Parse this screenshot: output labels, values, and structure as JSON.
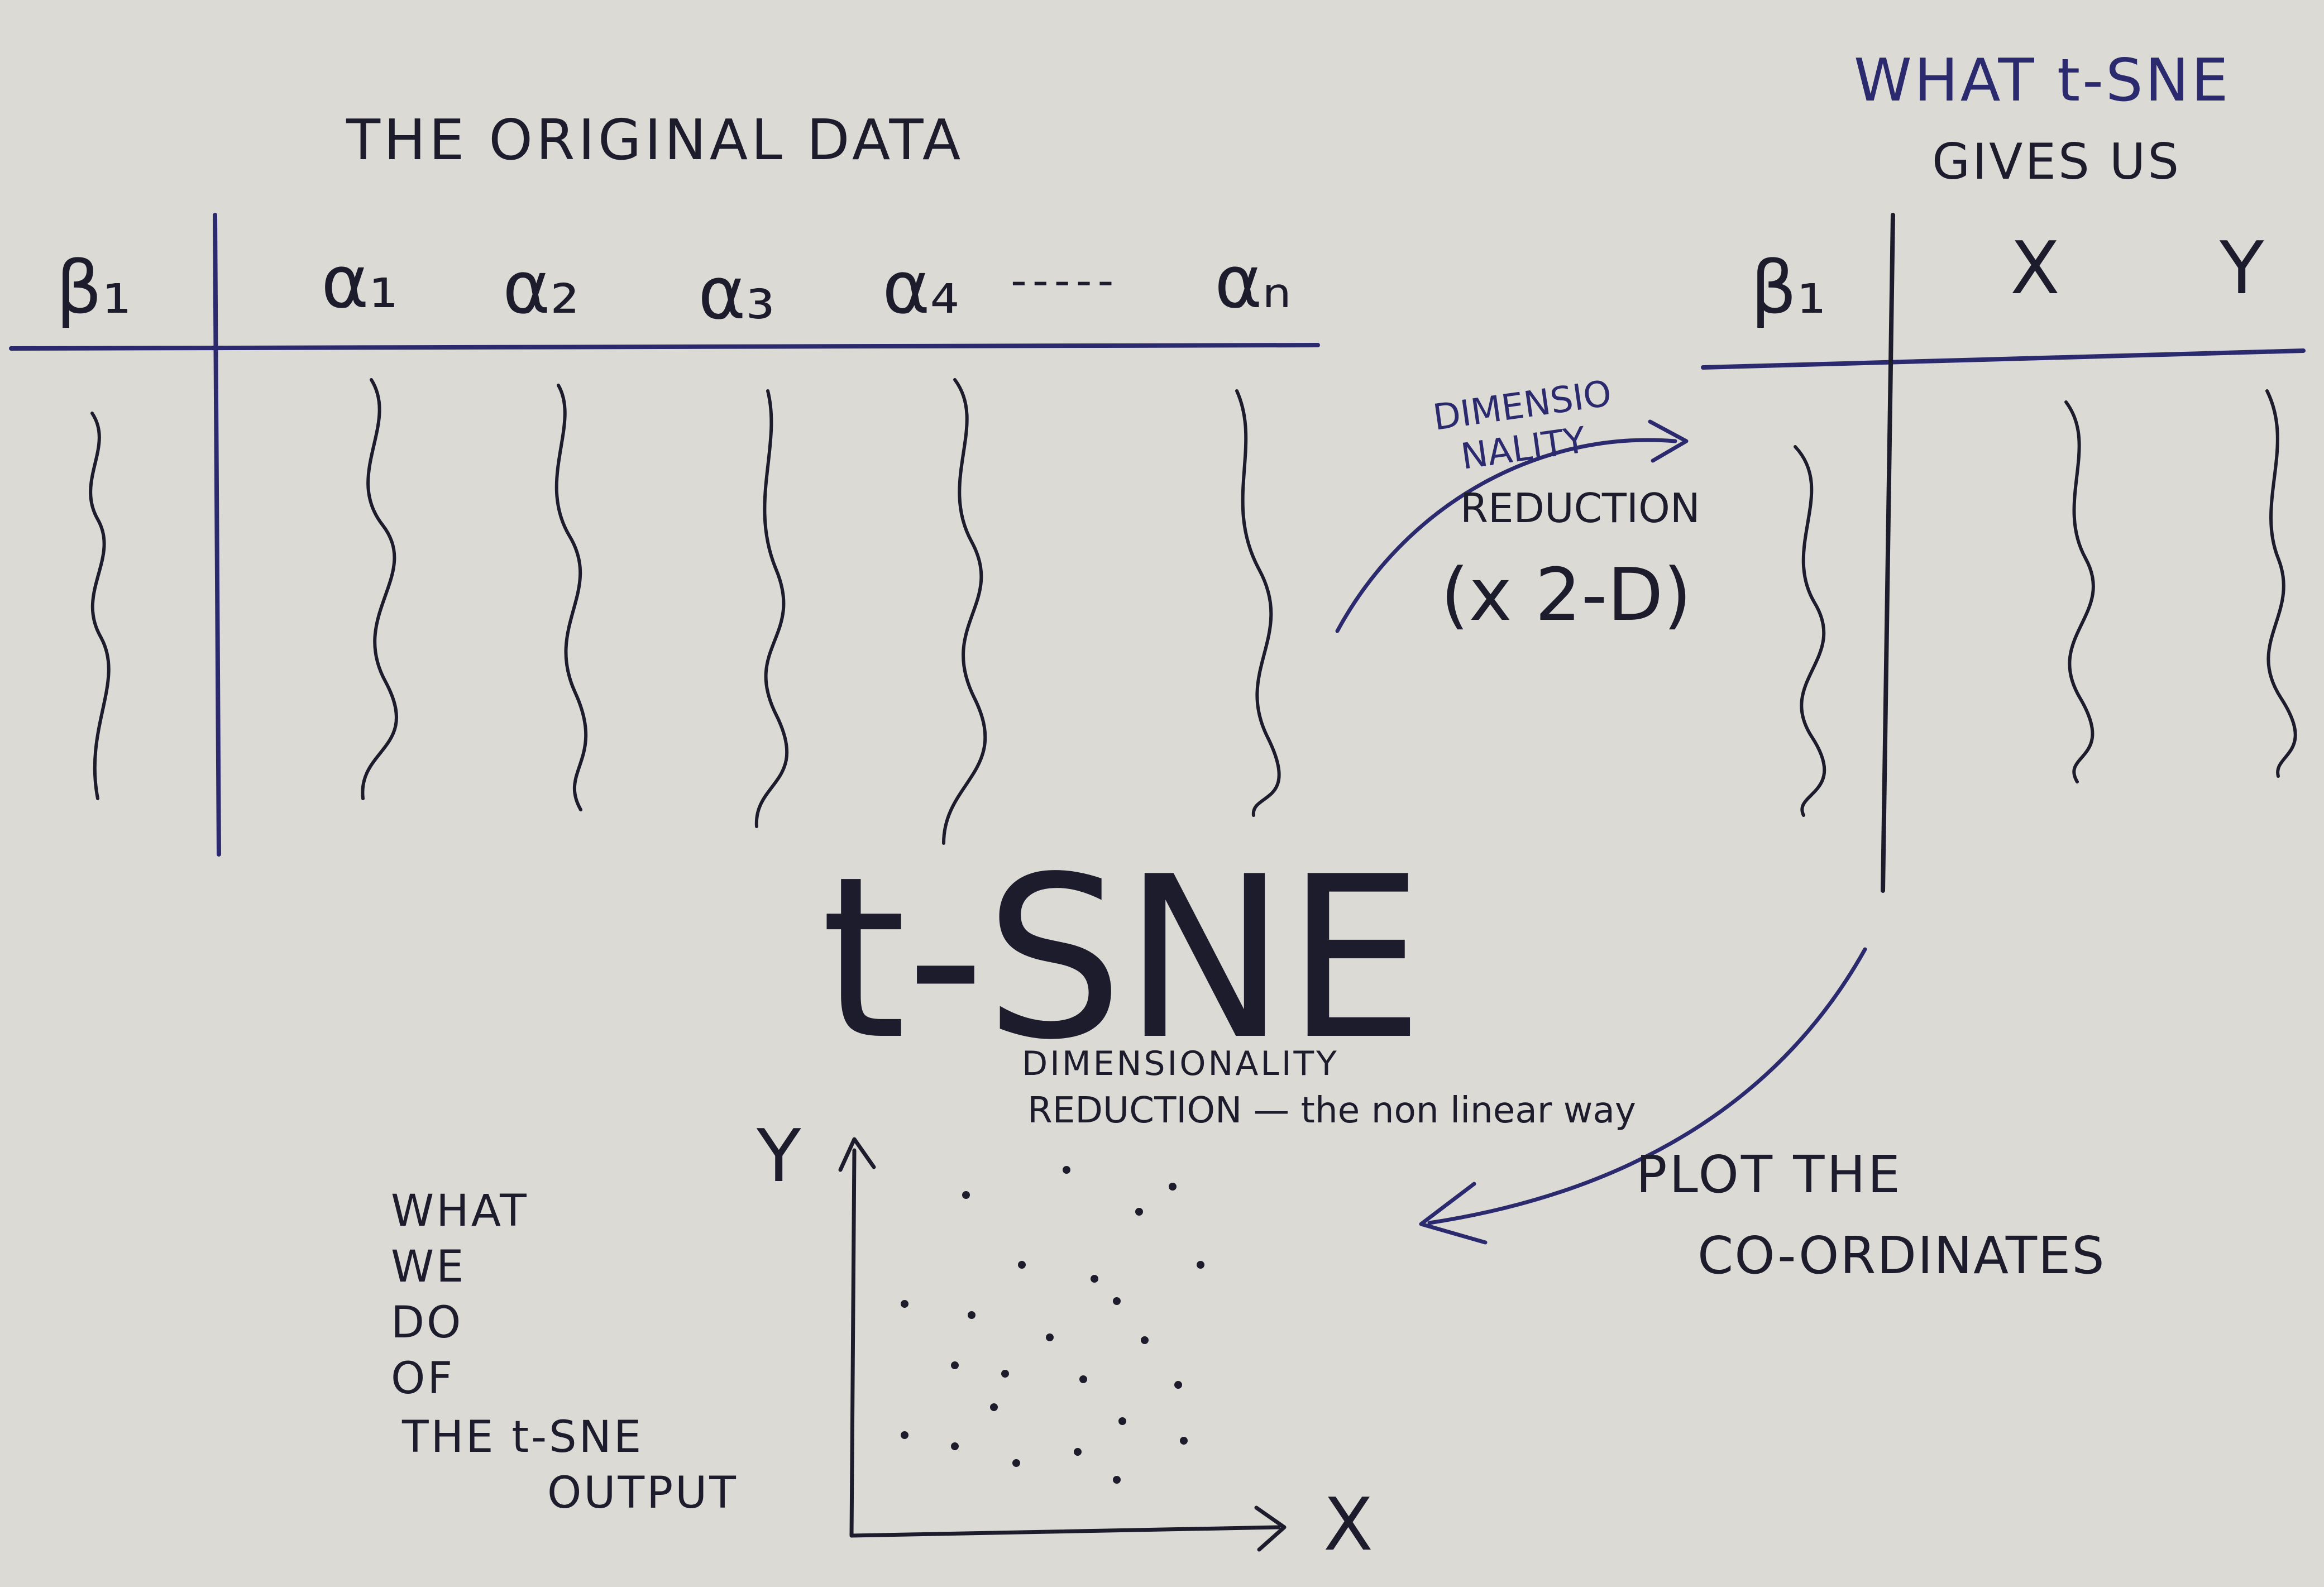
{
  "colors": {
    "paper": "#dcdad5",
    "ink": "#1c1c2c",
    "ink_blue": "#2c2a6e"
  },
  "original_table": {
    "title": "THE ORIGINAL DATA",
    "id_header": "β₁",
    "headers": [
      "α₁",
      "α₂",
      "α₃",
      "α₄",
      "αₙ"
    ],
    "ellipsis": "-----"
  },
  "dim_reduction": {
    "line1": "DIMENSIO",
    "line2": "NALITY",
    "line3": "REDUCTION",
    "line4": "(x 2-D)"
  },
  "tsne_table": {
    "title_line1": "WHAT t-SNE",
    "title_line2": "GIVES US",
    "id_header": "β₁",
    "headers": [
      "X",
      "Y"
    ]
  },
  "tsne_logo": {
    "title": "t-SNE",
    "subtitle_line1": "DIMENSIONALITY",
    "subtitle_line2": "REDUCTION — the non linear way"
  },
  "plot_label": {
    "line1": "PLOT THE",
    "line2": "CO-ORDINATES"
  },
  "what_we_do": [
    "WHAT",
    "WE",
    "DO",
    "OF",
    "THE t-SNE",
    "OUTPUT"
  ],
  "scatter": {
    "x_label": "X",
    "y_label": "Y"
  }
}
